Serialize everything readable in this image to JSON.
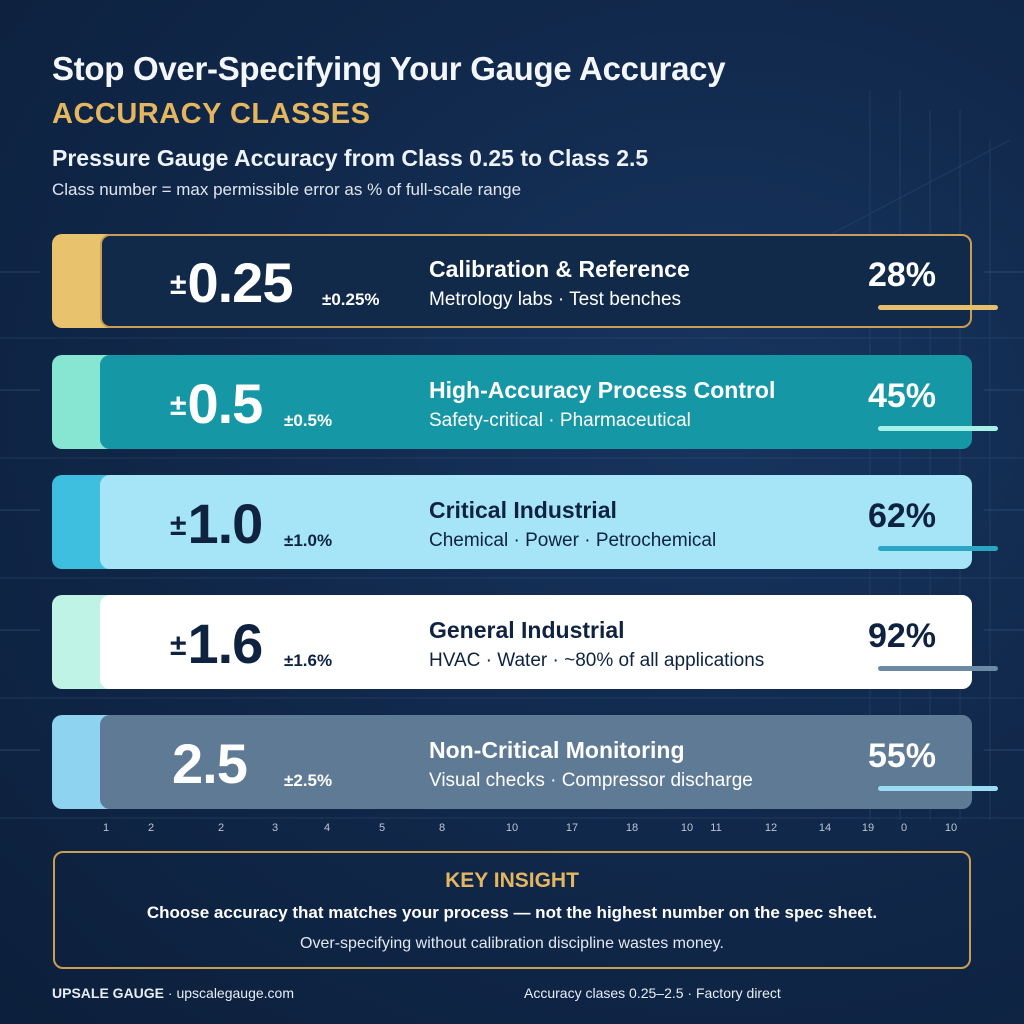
{
  "header": {
    "title": "Stop Over-Specifying Your Gauge Accuracy",
    "subtitle": "ACCURACY CLASSES",
    "heading": "Pressure Gauge Accuracy from Class 0.25 to Class 2.5",
    "note": "Class number = max permissible error as % of full-scale range"
  },
  "classes": [
    {
      "prefix": "±",
      "value": "0.25",
      "error": "±0.25%",
      "segment": "Calibration & Reference",
      "uses": "Metrology labs · Test benches",
      "percent": "28%",
      "fill_fraction": 0.28,
      "colors": {
        "tab": "#e8c26d",
        "card": "#122a4a",
        "border": "#c99d53",
        "text": "#ffffff",
        "bar": "#e6bf6e"
      }
    },
    {
      "prefix": "±",
      "value": "0.5",
      "error": "±0.5%",
      "segment": "High-Accuracy Process Control",
      "uses": "Safety-critical · Pharmaceutical",
      "percent": "45%",
      "fill_fraction": 0.45,
      "colors": {
        "tab": "#86e6d2",
        "card": "#1597a6",
        "border": "#1597a6",
        "text": "#ffffff",
        "bar": "#a8f0ea"
      }
    },
    {
      "prefix": "±",
      "value": "1.0",
      "error": "±1.0%",
      "segment": "Critical Industrial",
      "uses": "Chemical · Power · Petrochemical",
      "percent": "62%",
      "fill_fraction": 0.62,
      "colors": {
        "tab": "#3fbfe0",
        "card": "#a6e4f8",
        "border": "#a6e4f8",
        "text": "#0f2340",
        "bar": "#2aa6c2"
      }
    },
    {
      "prefix": "±",
      "value": "1.6",
      "error": "±1.6%",
      "segment": "General Industrial",
      "uses": "HVAC · Water · ~80% of all applications",
      "percent": "92%",
      "fill_fraction": 0.92,
      "colors": {
        "tab": "#bff3e6",
        "card": "#ffffff",
        "border": "#ffffff",
        "text": "#0f2340",
        "bar": "#6c8aa3"
      }
    },
    {
      "prefix": "",
      "value": "2.5",
      "error": "±2.5%",
      "segment": "Non-Critical Monitoring",
      "uses": "Visual checks · Compressor discharge",
      "percent": "55%",
      "fill_fraction": 0.55,
      "colors": {
        "tab": "#8ed3f0",
        "card": "#5f7a94",
        "border": "#5f7a94",
        "text": "#ffffff",
        "bar": "#9bdcf5"
      }
    }
  ],
  "axis_ticks": [
    "1",
    "2",
    "2",
    "3",
    "4",
    "5",
    "8",
    "10",
    "17",
    "18",
    "10",
    "11",
    "12",
    "14",
    "19",
    "0",
    "10"
  ],
  "insight": {
    "title": "KEY INSIGHT",
    "strong": "Choose accuracy that matches your process — not the highest number on the spec sheet.",
    "soft": "Over-specifying without calibration discipline wastes money."
  },
  "footer": {
    "brand": "UPSALE GAUGE",
    "site": " · upscalegauge.com",
    "tagline": "Accuracy clases 0.25–2.5 · Factory direct"
  }
}
